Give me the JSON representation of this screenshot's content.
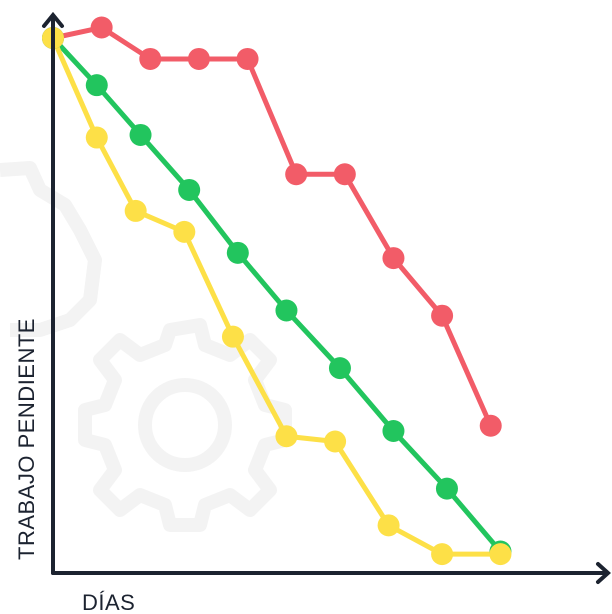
{
  "chart_data": {
    "type": "line",
    "xlabel": "DÍAS",
    "ylabel": "TRABAJO PENDIENTE",
    "xlim": [
      0,
      11
    ],
    "ylim": [
      0,
      100
    ],
    "grid": false,
    "series": [
      {
        "color": "#f25c68",
        "x": [
          0,
          1,
          2,
          3,
          4,
          5,
          6,
          7,
          8,
          9
        ],
        "values": [
          100,
          102,
          96,
          96,
          96,
          74,
          74,
          58,
          47,
          26
        ]
      },
      {
        "color": "#22c55e",
        "x": [
          0,
          0.9,
          1.8,
          2.8,
          3.8,
          4.8,
          5.9,
          7,
          8.1,
          9.2
        ],
        "values": [
          100,
          91,
          81.5,
          71,
          59,
          48,
          37,
          25,
          14,
          2
        ]
      },
      {
        "color": "#fde047",
        "x": [
          0,
          0.9,
          1.7,
          2.7,
          3.7,
          4.8,
          5.8,
          6.9,
          8,
          9.2
        ],
        "values": [
          100,
          81,
          67,
          63,
          43,
          24,
          23,
          7,
          1.5,
          1.5
        ]
      }
    ]
  }
}
